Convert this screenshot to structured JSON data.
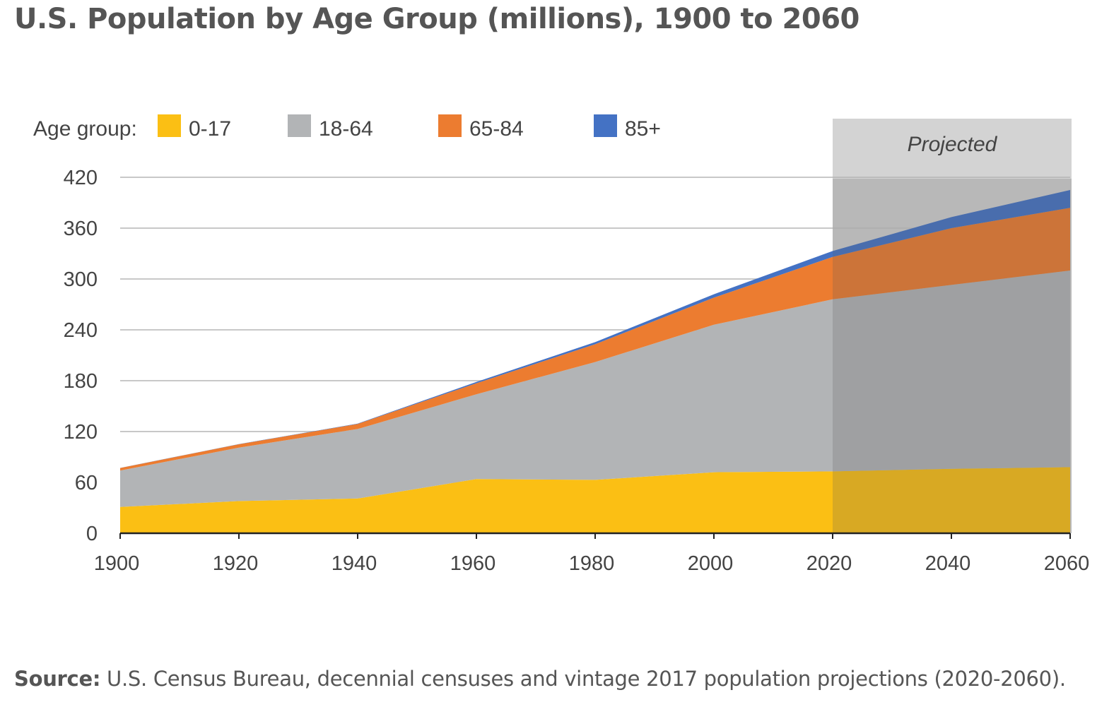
{
  "chart_data": {
    "type": "area",
    "stacked": true,
    "title": "U.S. Population by Age Group (millions), 1900 to 2060",
    "legend_label": "Age group:",
    "legend_placement": "top-left",
    "x": [
      1900,
      1920,
      1940,
      1960,
      1980,
      2000,
      2020,
      2040,
      2060
    ],
    "x_ticks": [
      "1900",
      "1920",
      "1940",
      "1960",
      "1980",
      "2000",
      "2020",
      "2040",
      "2060"
    ],
    "y_ticks": [
      "0",
      "60",
      "120",
      "180",
      "240",
      "300",
      "360",
      "420"
    ],
    "ylim": [
      0,
      420
    ],
    "xlim": [
      1900,
      2060
    ],
    "grid": true,
    "series": [
      {
        "name": "0-17",
        "color": "#FBBF14",
        "values": [
          31,
          38,
          41,
          64,
          63,
          72,
          73,
          76,
          78
        ]
      },
      {
        "name": "18-64",
        "color": "#B2B4B6",
        "values": [
          43,
          63,
          82,
          100,
          139,
          174,
          203,
          217,
          232
        ]
      },
      {
        "name": "65-84",
        "color": "#EC7C30",
        "values": [
          3,
          4,
          6,
          13,
          21,
          32,
          50,
          67,
          74
        ]
      },
      {
        "name": "85+",
        "color": "#4472C4",
        "values": [
          0.1,
          0.2,
          0.4,
          1.5,
          2.5,
          4,
          7,
          13,
          21
        ]
      }
    ],
    "annotation": {
      "label": "Projected",
      "x_range": [
        2020,
        2060
      ]
    }
  },
  "source": {
    "label": "Source:",
    "text": " U.S. Census Bureau, decennial censuses and vintage 2017 population projections (2020-2060)."
  }
}
